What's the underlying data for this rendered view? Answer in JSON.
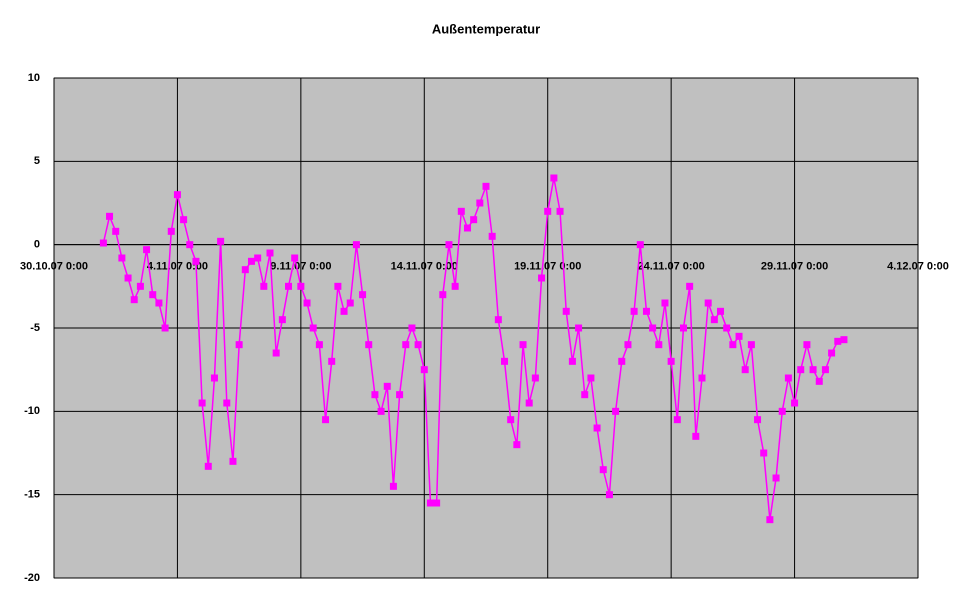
{
  "chart_data": {
    "type": "line",
    "title": "Außentemperatur",
    "x": [
      "1.11.07 0:00",
      "1.11.07 6:00",
      "1.11.07 12:00",
      "1.11.07 18:00",
      "2.11.07 0:00",
      "2.11.07 6:00",
      "2.11.07 12:00",
      "2.11.07 18:00",
      "3.11.07 0:00",
      "3.11.07 6:00",
      "3.11.07 12:00",
      "3.11.07 18:00",
      "4.11.07 0:00",
      "4.11.07 6:00",
      "4.11.07 12:00",
      "4.11.07 18:00",
      "5.11.07 0:00",
      "5.11.07 6:00",
      "5.11.07 12:00",
      "5.11.07 18:00",
      "6.11.07 0:00",
      "6.11.07 6:00",
      "6.11.07 12:00",
      "6.11.07 18:00",
      "7.11.07 0:00",
      "7.11.07 6:00",
      "7.11.07 12:00",
      "7.11.07 18:00",
      "8.11.07 0:00",
      "8.11.07 6:00",
      "8.11.07 12:00",
      "8.11.07 18:00",
      "9.11.07 0:00",
      "9.11.07 6:00",
      "9.11.07 12:00",
      "9.11.07 18:00",
      "10.11.07 0:00",
      "10.11.07 6:00",
      "10.11.07 12:00",
      "10.11.07 18:00",
      "11.11.07 0:00",
      "11.11.07 6:00",
      "11.11.07 12:00",
      "11.11.07 18:00",
      "12.11.07 0:00",
      "12.11.07 6:00",
      "12.11.07 12:00",
      "12.11.07 18:00",
      "13.11.07 0:00",
      "13.11.07 6:00",
      "13.11.07 12:00",
      "13.11.07 18:00",
      "14.11.07 0:00",
      "14.11.07 6:00",
      "14.11.07 12:00",
      "14.11.07 18:00",
      "15.11.07 0:00",
      "15.11.07 6:00",
      "15.11.07 12:00",
      "15.11.07 18:00",
      "16.11.07 0:00",
      "16.11.07 6:00",
      "16.11.07 12:00",
      "16.11.07 18:00",
      "17.11.07 0:00",
      "17.11.07 6:00",
      "17.11.07 12:00",
      "17.11.07 18:00",
      "18.11.07 0:00",
      "18.11.07 6:00",
      "18.11.07 12:00",
      "18.11.07 18:00",
      "19.11.07 0:00",
      "19.11.07 6:00",
      "19.11.07 12:00",
      "19.11.07 18:00",
      "20.11.07 0:00",
      "20.11.07 6:00",
      "20.11.07 12:00",
      "20.11.07 18:00",
      "21.11.07 0:00",
      "21.11.07 6:00",
      "21.11.07 12:00",
      "21.11.07 18:00",
      "22.11.07 0:00",
      "22.11.07 6:00",
      "22.11.07 12:00",
      "22.11.07 18:00",
      "23.11.07 0:00",
      "23.11.07 6:00",
      "23.11.07 12:00",
      "23.11.07 18:00",
      "24.11.07 0:00",
      "24.11.07 6:00",
      "24.11.07 12:00",
      "24.11.07 18:00",
      "25.11.07 0:00",
      "25.11.07 6:00",
      "25.11.07 12:00",
      "25.11.07 18:00",
      "26.11.07 0:00",
      "26.11.07 6:00",
      "26.11.07 12:00",
      "26.11.07 18:00",
      "27.11.07 0:00",
      "27.11.07 6:00",
      "27.11.07 12:00",
      "27.11.07 18:00",
      "28.11.07 0:00",
      "28.11.07 6:00",
      "28.11.07 12:00",
      "28.11.07 18:00",
      "29.11.07 0:00",
      "29.11.07 6:00",
      "29.11.07 12:00",
      "29.11.07 18:00",
      "30.11.07 0:00",
      "30.11.07 6:00",
      "30.11.07 12:00",
      "30.11.07 18:00",
      "1.12.07 0:00"
    ],
    "series": [
      {
        "color": "#ff00ff",
        "values": [
          0.1,
          1.7,
          0.8,
          -0.8,
          -2,
          -3.3,
          -2.5,
          -0.3,
          -3,
          -3.5,
          -5,
          0.8,
          3,
          1.5,
          0,
          -1,
          -9.5,
          -13.3,
          -8,
          0.2,
          -9.5,
          -13,
          -6,
          -1.5,
          -1,
          -0.8,
          -2.5,
          -0.5,
          -6.5,
          -4.5,
          -2.5,
          -0.8,
          -2.5,
          -3.5,
          -5,
          -6,
          -10.5,
          -7,
          -2.5,
          -4,
          -3.5,
          0,
          -3,
          -6,
          -9,
          -10,
          -8.5,
          -14.5,
          -9,
          -6,
          -5,
          -6,
          -7.5,
          -15.5,
          -15.5,
          -3,
          0,
          -2.5,
          2,
          1,
          1.5,
          2.5,
          3.5,
          0.5,
          -4.5,
          -7,
          -10.5,
          -12,
          -6,
          -9.5,
          -8,
          -2,
          2,
          4,
          2,
          -4,
          -7,
          -5,
          -9,
          -8,
          -11,
          -13.5,
          -15,
          -10,
          -7,
          -6,
          -4,
          0,
          -4,
          -5,
          -6,
          -3.5,
          -7,
          -10.5,
          -5,
          -2.5,
          -11.5,
          -8,
          -3.5,
          -4.5,
          -4,
          -5,
          -6,
          -5.5,
          -7.5,
          -6,
          -10.5,
          -12.5,
          -16.5,
          -14,
          -10,
          -8,
          -9.5,
          -7.5,
          -6,
          -7.5,
          -8.2,
          -7.5,
          -6.5,
          -5.8,
          -5.7
        ]
      }
    ],
    "xlim": [
      "30.10.07 0:00",
      "4.12.07 0:00"
    ],
    "xticks": [
      "30.10.07 0:00",
      "4.11.07 0:00",
      "9.11.07 0:00",
      "14.11.07 0:00",
      "19.11.07 0:00",
      "24.11.07 0:00",
      "29.11.07 0:00",
      "4.12.07 0:00"
    ],
    "ylim": [
      -20,
      10
    ],
    "yticks": [
      -20,
      -15,
      -10,
      -5,
      0,
      5,
      10
    ],
    "grid": true
  }
}
